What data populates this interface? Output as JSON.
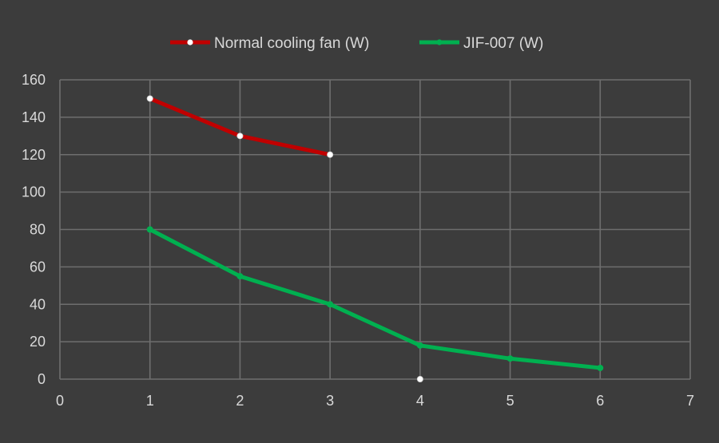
{
  "chart_data": {
    "type": "line",
    "title": "",
    "xlabel": "",
    "ylabel": "",
    "xlim": [
      0,
      7
    ],
    "ylim": [
      0,
      160
    ],
    "x_ticks": [
      "0",
      "1",
      "2",
      "3",
      "4",
      "5",
      "6",
      "7"
    ],
    "y_ticks": [
      "0",
      "20",
      "40",
      "60",
      "80",
      "100",
      "120",
      "140",
      "160"
    ],
    "grid": true,
    "legend_position": "top",
    "series": [
      {
        "name": "Normal cooling fan (W)",
        "color": "#c00000",
        "marker_color": "#ffffff",
        "points": [
          [
            1,
            150
          ],
          [
            2,
            130
          ],
          [
            3,
            120
          ],
          [
            4,
            0
          ]
        ],
        "line_to_last": false
      },
      {
        "name": "JIF-007 (W)",
        "color": "#00b050",
        "marker_color": "#00b050",
        "points": [
          [
            1,
            80
          ],
          [
            2,
            55
          ],
          [
            3,
            40
          ],
          [
            4,
            18
          ],
          [
            5,
            11
          ],
          [
            6,
            6
          ]
        ],
        "line_to_last": true
      }
    ]
  }
}
